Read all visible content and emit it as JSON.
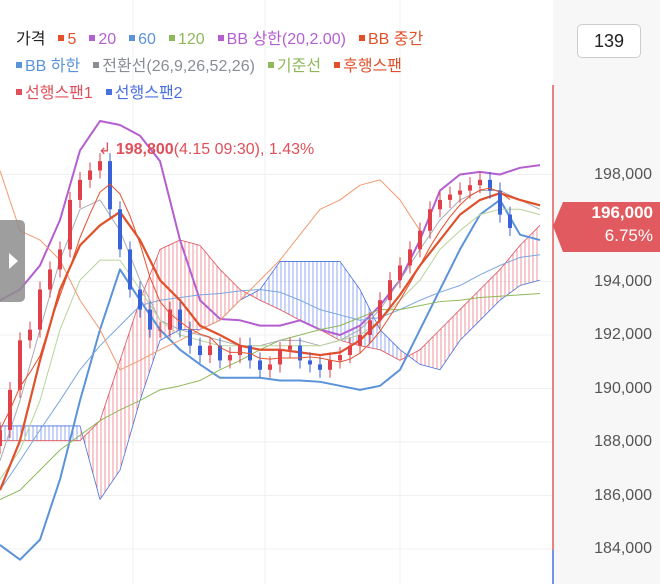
{
  "legend": [
    {
      "label": "가격",
      "color": "#222222",
      "square": false
    },
    {
      "label": "5",
      "color": "#e5502a",
      "square": true
    },
    {
      "label": "20",
      "color": "#b45fd0",
      "square": true
    },
    {
      "label": "60",
      "color": "#5b93d9",
      "square": true
    },
    {
      "label": "120",
      "color": "#8fb85a",
      "square": true
    },
    {
      "label": "BB 상한(20,2.00)",
      "color": "#b45fd0",
      "square": true
    },
    {
      "label": "BB 중간",
      "color": "#e0502a",
      "square": true
    },
    {
      "label": "BB 하한",
      "color": "#5b93d9",
      "square": true
    },
    {
      "label": "전환선(26,9,26,52,26)",
      "color": "#8a8d96",
      "square": true
    },
    {
      "label": "기준선",
      "color": "#8fb85a",
      "square": true
    },
    {
      "label": "후행스팬",
      "color": "#e0502a",
      "square": true
    },
    {
      "label": "선행스팬1",
      "color": "#e0505a",
      "square": true
    },
    {
      "label": "선행스팬2",
      "color": "#4a6fe0",
      "square": true
    }
  ],
  "count_box": "139",
  "current_price": {
    "value": "196,000",
    "change": "6.75%",
    "color": "#e05a5f"
  },
  "max_label": {
    "price": "198,800",
    "detail": "(4.15 09:30), 1.43%"
  },
  "chart_data": {
    "type": "line",
    "title": "",
    "y_ticks": [
      "198,000",
      "194,000",
      "192,000",
      "190,000",
      "188,000",
      "186,000",
      "184,000"
    ],
    "y_tick_values": [
      198000,
      194000,
      192000,
      190000,
      188000,
      186000,
      184000
    ],
    "ylim": [
      183000,
      201500
    ],
    "grid": true,
    "close": [
      188450,
      189950,
      191800,
      192200,
      193700,
      194450,
      195200,
      197050,
      197800,
      198150,
      198500,
      196700,
      195200,
      193700,
      192950,
      192200,
      192200,
      192950,
      192200,
      191600,
      191250,
      191600,
      191050,
      191250,
      191600,
      191050,
      190700,
      190900,
      191450,
      191600,
      191050,
      190900,
      190700,
      191050,
      191250,
      191600,
      192000,
      192550,
      193300,
      194050,
      194600,
      195200,
      195900,
      196700,
      197050,
      197250,
      197400,
      197600,
      197800,
      197400,
      196500,
      196000
    ],
    "series": [
      {
        "name": "BB 상한(20,2.00)",
        "color": "#b45fd0",
        "values": [
          193300,
          193700,
          194600,
          196300,
          198900,
          200000,
          199850,
          199450,
          198500,
          195550,
          193300,
          192600,
          192550,
          192350,
          192350,
          192550,
          192200,
          192000,
          192350,
          193100,
          194050,
          195550,
          197400,
          198000,
          198100,
          198000,
          198250,
          198350
        ]
      },
      {
        "name": "BB 하한",
        "color": "#5b93d9",
        "values": [
          184150,
          183600,
          184350,
          186600,
          189550,
          192200,
          194450,
          193300,
          192200,
          191450,
          190900,
          190400,
          190400,
          190400,
          190300,
          190300,
          190250,
          190100,
          189950,
          190100,
          190700,
          192200,
          193700,
          195200,
          196500,
          197050,
          195750,
          195550
        ]
      },
      {
        "name": "60",
        "color": "#7aa6e0",
        "values": [
          186200,
          187300,
          188450,
          189550,
          190700,
          191600,
          192350,
          193100,
          193300,
          193400,
          193500,
          193550,
          193650,
          193700,
          193600,
          193300,
          192950,
          192750,
          192550,
          192650,
          192950,
          193300,
          193600,
          193850,
          194250,
          194600,
          194900,
          195000
        ]
      },
      {
        "name": "120",
        "color": "#8fb85a",
        "values": [
          185850,
          186200,
          186950,
          187700,
          188250,
          188800,
          189200,
          189550,
          189950,
          190100,
          190300,
          190700,
          191050,
          191450,
          191800,
          192000,
          192200,
          192350,
          192650,
          192950,
          192950,
          193100,
          193250,
          193300,
          193400,
          193450,
          193500,
          193550
        ]
      },
      {
        "name": "전환선(26,9,26,52,26)",
        "color": "#a9abb2",
        "values": [
          187300,
          189550,
          192200,
          194800,
          196700,
          197050,
          195900,
          194050,
          192550,
          192200,
          192000,
          191800,
          191600,
          191600,
          191800,
          191800,
          191600,
          191800,
          192200,
          192950,
          194050,
          195200,
          196300,
          197050,
          197400,
          197400,
          197050,
          196700
        ]
      },
      {
        "name": "기준선",
        "color": "#b8d39a",
        "values": [
          186600,
          187700,
          189550,
          192200,
          194050,
          194800,
          194800,
          193700,
          192550,
          192000,
          191800,
          191600,
          191600,
          191600,
          191600,
          191600,
          191600,
          191800,
          192000,
          192550,
          193300,
          194050,
          195200,
          195900,
          196500,
          196700,
          196700,
          196500
        ]
      },
      {
        "name": "후행스팬",
        "color": "#f09a70",
        "values": [
          198150,
          195900,
          195550,
          194800,
          193300,
          192200,
          190700,
          191050,
          191450,
          191800,
          192200,
          192550,
          193300,
          194050,
          194800,
          195750,
          196700,
          197050,
          197600,
          197800,
          197050,
          195900
        ]
      },
      {
        "name": "BB 중간",
        "color": "#e0502a",
        "values": [
          186200,
          188050,
          191050,
          193700,
          195350,
          196100,
          196600,
          195550,
          194050,
          193300,
          192350,
          192000,
          191600,
          191450,
          191450,
          191350,
          191250,
          191350,
          191800,
          192550,
          193500,
          194600,
          195550,
          196500,
          197050,
          197300,
          197050,
          196850
        ]
      }
    ],
    "span1": {
      "name": "선행스팬1",
      "color": "#e0505a",
      "values": [
        188050,
        188050,
        188050,
        188050,
        188050,
        188800,
        191050,
        193300,
        195200,
        195550,
        195350,
        194450,
        193700,
        193300,
        192950,
        192550,
        192200,
        191800,
        191600,
        191450,
        191050,
        191450,
        192200,
        192950,
        193700,
        194450,
        195350,
        196100
      ]
    },
    "span2": {
      "name": "선행스팬2",
      "color": "#4a6fe0",
      "values": [
        188600,
        188600,
        188600,
        188600,
        188600,
        185850,
        186950,
        189550,
        191800,
        192200,
        192200,
        192550,
        193300,
        193700,
        194750,
        194750,
        194750,
        194750,
        193700,
        192200,
        191450,
        190900,
        190700,
        191800,
        192550,
        193300,
        193850,
        194050
      ]
    },
    "up_color": "#e0404a",
    "down_color": "#3a62d8"
  }
}
